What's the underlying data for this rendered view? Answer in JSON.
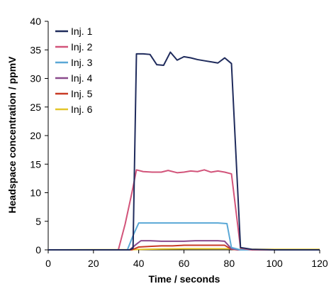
{
  "chart_data": {
    "type": "line",
    "xlabel": "Time / seconds",
    "ylabel": "Headspace concentration / ppmV",
    "xlim": [
      0,
      120
    ],
    "ylim": [
      0,
      40
    ],
    "x_ticks": [
      0,
      20,
      40,
      60,
      80,
      100,
      120
    ],
    "y_ticks": [
      0,
      5,
      10,
      15,
      20,
      25,
      30,
      35,
      40
    ],
    "x_tick_labels": [
      "0",
      "20",
      "40",
      "60",
      "80",
      "100",
      "120"
    ],
    "y_tick_labels": [
      "0",
      "5",
      "10",
      "15",
      "20",
      "25",
      "30",
      "35",
      "40"
    ],
    "grid": false,
    "legend_position": "top-left",
    "series": [
      {
        "name": "Inj. 1",
        "color": "#1f2b5c",
        "x": [
          0,
          32,
          36,
          37.5,
          39,
          42,
          45,
          48,
          51,
          54,
          57,
          60,
          63,
          66,
          69,
          72,
          75,
          78,
          81,
          85,
          90,
          95,
          100,
          105,
          110,
          120
        ],
        "y": [
          0,
          0,
          0,
          0.3,
          34.3,
          34.3,
          34.2,
          32.4,
          32.3,
          34.6,
          33.2,
          33.8,
          33.6,
          33.3,
          33.1,
          32.9,
          32.7,
          33.6,
          32.6,
          0.4,
          0.1,
          0.05,
          0,
          0,
          0,
          0
        ]
      },
      {
        "name": "Inj. 2",
        "color": "#d2547a",
        "x": [
          0,
          31,
          34,
          37,
          39,
          42,
          46,
          50,
          53,
          57,
          60,
          63,
          66,
          69,
          72,
          75,
          78,
          81,
          85,
          90,
          120
        ],
        "y": [
          0,
          0,
          4.5,
          10,
          14,
          13.7,
          13.6,
          13.6,
          13.9,
          13.5,
          13.6,
          13.8,
          13.7,
          14,
          13.6,
          13.8,
          13.6,
          13.3,
          0.3,
          0,
          0
        ]
      },
      {
        "name": "Inj. 3",
        "color": "#5aa8d6",
        "x": [
          0,
          35,
          37.5,
          40,
          45,
          50,
          55,
          60,
          65,
          70,
          75,
          79,
          81,
          85,
          120
        ],
        "y": [
          0,
          0,
          2.5,
          4.7,
          4.7,
          4.7,
          4.7,
          4.7,
          4.7,
          4.7,
          4.7,
          4.6,
          0.4,
          0,
          0
        ]
      },
      {
        "name": "Inj. 4",
        "color": "#8a4a8c",
        "x": [
          0,
          36,
          39,
          41,
          45,
          50,
          55,
          60,
          65,
          70,
          75,
          78,
          81,
          84,
          120
        ],
        "y": [
          0,
          0,
          1,
          1.6,
          1.6,
          1.5,
          1.5,
          1.5,
          1.6,
          1.6,
          1.6,
          1.5,
          0.2,
          0,
          0
        ]
      },
      {
        "name": "Inj. 5",
        "color": "#c83a24",
        "x": [
          0,
          37,
          40,
          45,
          50,
          55,
          60,
          65,
          70,
          75,
          78,
          81,
          84,
          120
        ],
        "y": [
          0,
          0,
          0.5,
          0.6,
          0.7,
          0.7,
          0.8,
          0.8,
          0.8,
          0.8,
          0.8,
          0.1,
          0,
          0
        ]
      },
      {
        "name": "Inj. 6",
        "color": "#e3c62a",
        "x": [
          0,
          38,
          42,
          50,
          60,
          70,
          80,
          83,
          90,
          120
        ],
        "y": [
          0,
          0.05,
          0.1,
          0.15,
          0.2,
          0.2,
          0.2,
          0.05,
          0.1,
          0.1
        ]
      }
    ]
  }
}
